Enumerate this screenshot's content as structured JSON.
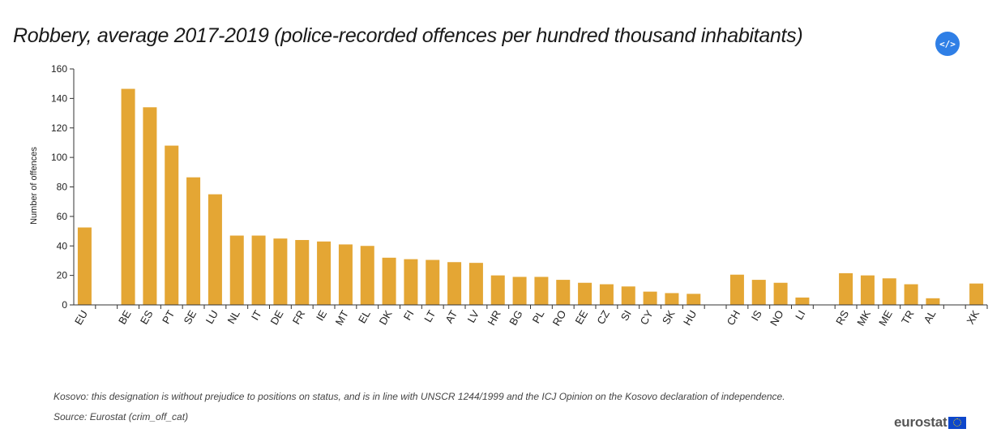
{
  "header": {
    "title": "Robbery, average 2017-2019 (police-recorded offences per hundred thousand inhabitants)",
    "embed_label": "</>"
  },
  "footer": {
    "note": "Kosovo: this designation is without prejudice to positions on status, and is in line with UNSCR 1244/1999 and the ICJ Opinion on the Kosovo declaration of independence.",
    "source": "Source: Eurostat (crim_off_cat)",
    "logo": "eurostat"
  },
  "colors": {
    "bar": "#e4a634",
    "axis": "#333333",
    "embed_button": "#2f7fe6"
  },
  "chart_data": {
    "type": "bar",
    "title": "Robbery, average 2017-2019 (police-recorded offences per hundred thousand inhabitants)",
    "ylabel": "Number of offences",
    "xlabel": "",
    "ylim": [
      0,
      160
    ],
    "yticks": [
      0,
      20,
      40,
      60,
      80,
      100,
      120,
      140,
      160
    ],
    "grid": false,
    "categories": [
      "EU",
      "",
      "BE",
      "ES",
      "PT",
      "SE",
      "LU",
      "NL",
      "IT",
      "DE",
      "FR",
      "IE",
      "MT",
      "EL",
      "DK",
      "FI",
      "LT",
      "AT",
      "LV",
      "HR",
      "BG",
      "PL",
      "RO",
      "EE",
      "CZ",
      "SI",
      "CY",
      "SK",
      "HU",
      "",
      "CH",
      "IS",
      "NO",
      "LI",
      "",
      "RS",
      "MK",
      "ME",
      "TR",
      "AL",
      "",
      "XK"
    ],
    "values": [
      52.5,
      null,
      146.5,
      134,
      108,
      86.5,
      75,
      47,
      47,
      45,
      44,
      43,
      41,
      40,
      32,
      31,
      30.5,
      29,
      28.5,
      20,
      19,
      19,
      17,
      15,
      14,
      12.5,
      9,
      8,
      7.5,
      null,
      20.5,
      17,
      15,
      5,
      null,
      21.5,
      20,
      18,
      14,
      4.5,
      null,
      14.5
    ]
  }
}
